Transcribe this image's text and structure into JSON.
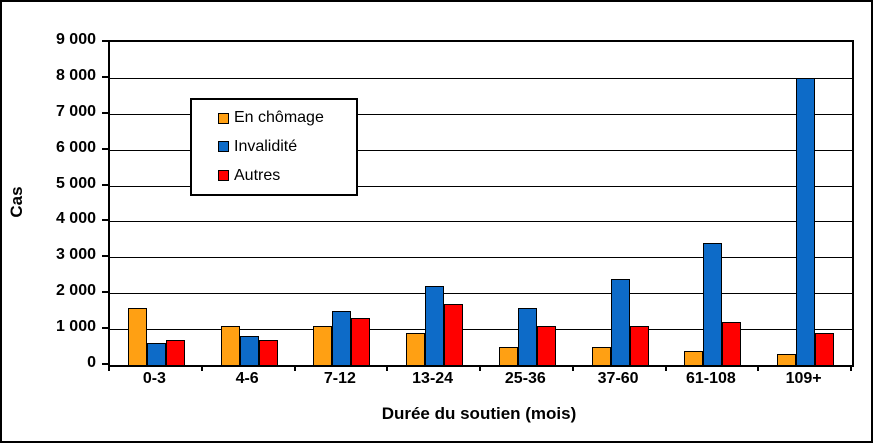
{
  "chart_data": {
    "type": "bar",
    "title": "",
    "xlabel": "Durée du soutien (mois)",
    "ylabel": "Cas",
    "categories": [
      "0-3",
      "4-6",
      "7-12",
      "13-24",
      "25-36",
      "37-60",
      "61-108",
      "109+"
    ],
    "series": [
      {
        "name": "En chômage",
        "color": "#FFA013",
        "values": [
          1600,
          1100,
          1100,
          900,
          500,
          500,
          400,
          300
        ]
      },
      {
        "name": "Invalidité",
        "color": "#0D6BC8",
        "values": [
          600,
          800,
          1500,
          2200,
          1600,
          2400,
          3400,
          8000
        ]
      },
      {
        "name": "Autres",
        "color": "#FF0000",
        "values": [
          700,
          700,
          1300,
          1700,
          1100,
          1100,
          1200,
          900
        ]
      }
    ],
    "ylim": [
      0,
      9000
    ],
    "ytick_step": 1000,
    "ytick_labels": [
      "0",
      "1 000",
      "2 000",
      "3 000",
      "4 000",
      "5 000",
      "6 000",
      "7 000",
      "8 000",
      "9 000"
    ],
    "grid": true,
    "legend_position": "inside-upper-left",
    "colors": {
      "axis": "#000000",
      "gridline": "#000000",
      "background": "#FFFFFF",
      "bar_border": "#000000"
    }
  }
}
